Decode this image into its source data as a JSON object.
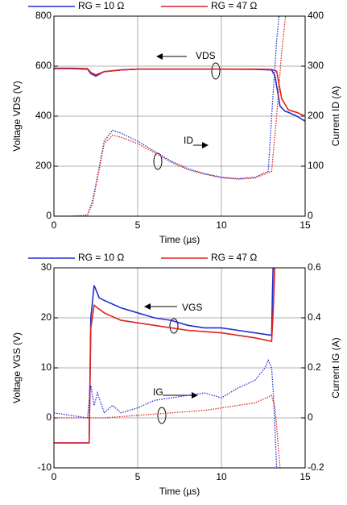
{
  "chart_data": [
    {
      "type": "line",
      "xlabel": "Time (µs)",
      "ylabel": "Voltage  VDS (V)",
      "y2label": "Current  ID (A)",
      "xlim": [
        0,
        15
      ],
      "xticks": [
        0,
        5,
        10,
        15
      ],
      "ylim": [
        0,
        800
      ],
      "yticks": [
        0,
        200,
        400,
        600,
        800
      ],
      "y2lim": [
        0,
        400
      ],
      "y2ticks": [
        0,
        100,
        200,
        300,
        400
      ],
      "grid": true,
      "annotations": [
        {
          "text": "VDS"
        },
        {
          "text": "ID"
        }
      ],
      "series": [
        {
          "name": "RG = 10 Ω",
          "color": "#1f2fd0",
          "x": [
            0,
            1,
            2,
            2.2,
            2.5,
            3,
            4,
            5,
            7,
            10,
            12,
            13,
            13.2,
            13.5,
            13.8,
            14,
            14.5,
            15
          ],
          "values": [
            590,
            590,
            588,
            570,
            560,
            578,
            585,
            588,
            588,
            588,
            587,
            585,
            560,
            440,
            420,
            415,
            400,
            380
          ]
        },
        {
          "name": "RG = 47 Ω",
          "color": "#e02020",
          "x": [
            0,
            1,
            2,
            2.2,
            2.5,
            3,
            4,
            5,
            7,
            10,
            12,
            13,
            13.3,
            13.6,
            14,
            14.5,
            15
          ],
          "values": [
            592,
            592,
            590,
            575,
            565,
            578,
            585,
            588,
            588,
            588,
            588,
            587,
            580,
            470,
            425,
            415,
            400
          ]
        },
        {
          "color": "#1f2fd0",
          "dash": true,
          "axis": "y2",
          "x": [
            0,
            1,
            2,
            2.3,
            2.6,
            3,
            3.5,
            4,
            5,
            6,
            7,
            8,
            9,
            10,
            11,
            12,
            12.8,
            13,
            13.3,
            13.5
          ],
          "values": [
            0,
            0,
            2,
            30,
            80,
            150,
            172,
            166,
            150,
            130,
            110,
            95,
            85,
            78,
            75,
            78,
            90,
            200,
            350,
            420
          ]
        },
        {
          "color": "#e02020",
          "dash": true,
          "axis": "y2",
          "x": [
            0,
            1,
            2,
            2.3,
            2.6,
            3,
            3.5,
            4,
            5,
            6,
            7,
            8,
            9,
            10,
            11,
            12,
            13,
            13.3,
            13.6,
            13.9
          ],
          "values": [
            0,
            0,
            2,
            25,
            75,
            145,
            162,
            158,
            145,
            127,
            108,
            93,
            84,
            77,
            74,
            76,
            90,
            200,
            330,
            420
          ]
        }
      ]
    },
    {
      "type": "line",
      "xlabel": "Time (µs)",
      "ylabel": "Voltage  VGS (V)",
      "y2label": "Current  IG (A)",
      "xlim": [
        0,
        15
      ],
      "xticks": [
        0,
        5,
        10,
        15
      ],
      "ylim": [
        -10,
        30
      ],
      "yticks": [
        -10,
        0,
        10,
        20,
        30
      ],
      "y2lim": [
        -0.2,
        0.6
      ],
      "y2ticks": [
        -0.2,
        0,
        0.2,
        0.4,
        0.6
      ],
      "grid": true,
      "annotations": [
        {
          "text": "VGS"
        },
        {
          "text": "IG"
        }
      ],
      "series": [
        {
          "name": "RG = 10 Ω",
          "color": "#1f2fd0",
          "x": [
            0,
            1,
            2,
            2.1,
            2.2,
            2.4,
            2.7,
            3,
            4,
            5,
            6,
            7,
            8,
            9,
            10,
            11,
            12,
            13,
            13.05,
            13.1
          ],
          "values": [
            -5,
            -5,
            -5,
            -5,
            20,
            26.5,
            24,
            23.5,
            22,
            21,
            20,
            19.5,
            18.5,
            18,
            18,
            17.5,
            17,
            16.5,
            25,
            32
          ]
        },
        {
          "name": "RG = 47 Ω",
          "color": "#e02020",
          "x": [
            0,
            1,
            2,
            2.1,
            2.2,
            2.4,
            3,
            4,
            5,
            6,
            8,
            10,
            12,
            13,
            13.1,
            13.2
          ],
          "values": [
            -5,
            -5,
            -5,
            -5,
            18,
            22.5,
            21,
            19.5,
            19,
            18.5,
            17.5,
            17,
            16,
            15.3,
            22,
            32
          ]
        },
        {
          "color": "#1f2fd0",
          "dash": true,
          "axis": "y2",
          "x": [
            0,
            1,
            2,
            2.2,
            2.4,
            2.6,
            3,
            3.5,
            4,
            5,
            6,
            7,
            8,
            9,
            10,
            11,
            12,
            12.6,
            12.8,
            13,
            13.1,
            13.3
          ],
          "values": [
            0.02,
            0.01,
            0,
            0.13,
            0.05,
            0.1,
            0.02,
            0.05,
            0.02,
            0.04,
            0.07,
            0.08,
            0.09,
            0.1,
            0.08,
            0.12,
            0.15,
            0.2,
            0.23,
            0.2,
            0.1,
            -0.2
          ]
        },
        {
          "color": "#e02020",
          "dash": true,
          "axis": "y2",
          "x": [
            0,
            2,
            3,
            5,
            7,
            9,
            11,
            12,
            13,
            13.2,
            13.5
          ],
          "values": [
            0,
            0,
            0,
            0.01,
            0.02,
            0.03,
            0.05,
            0.06,
            0.09,
            0.04,
            -0.2
          ]
        }
      ]
    }
  ]
}
